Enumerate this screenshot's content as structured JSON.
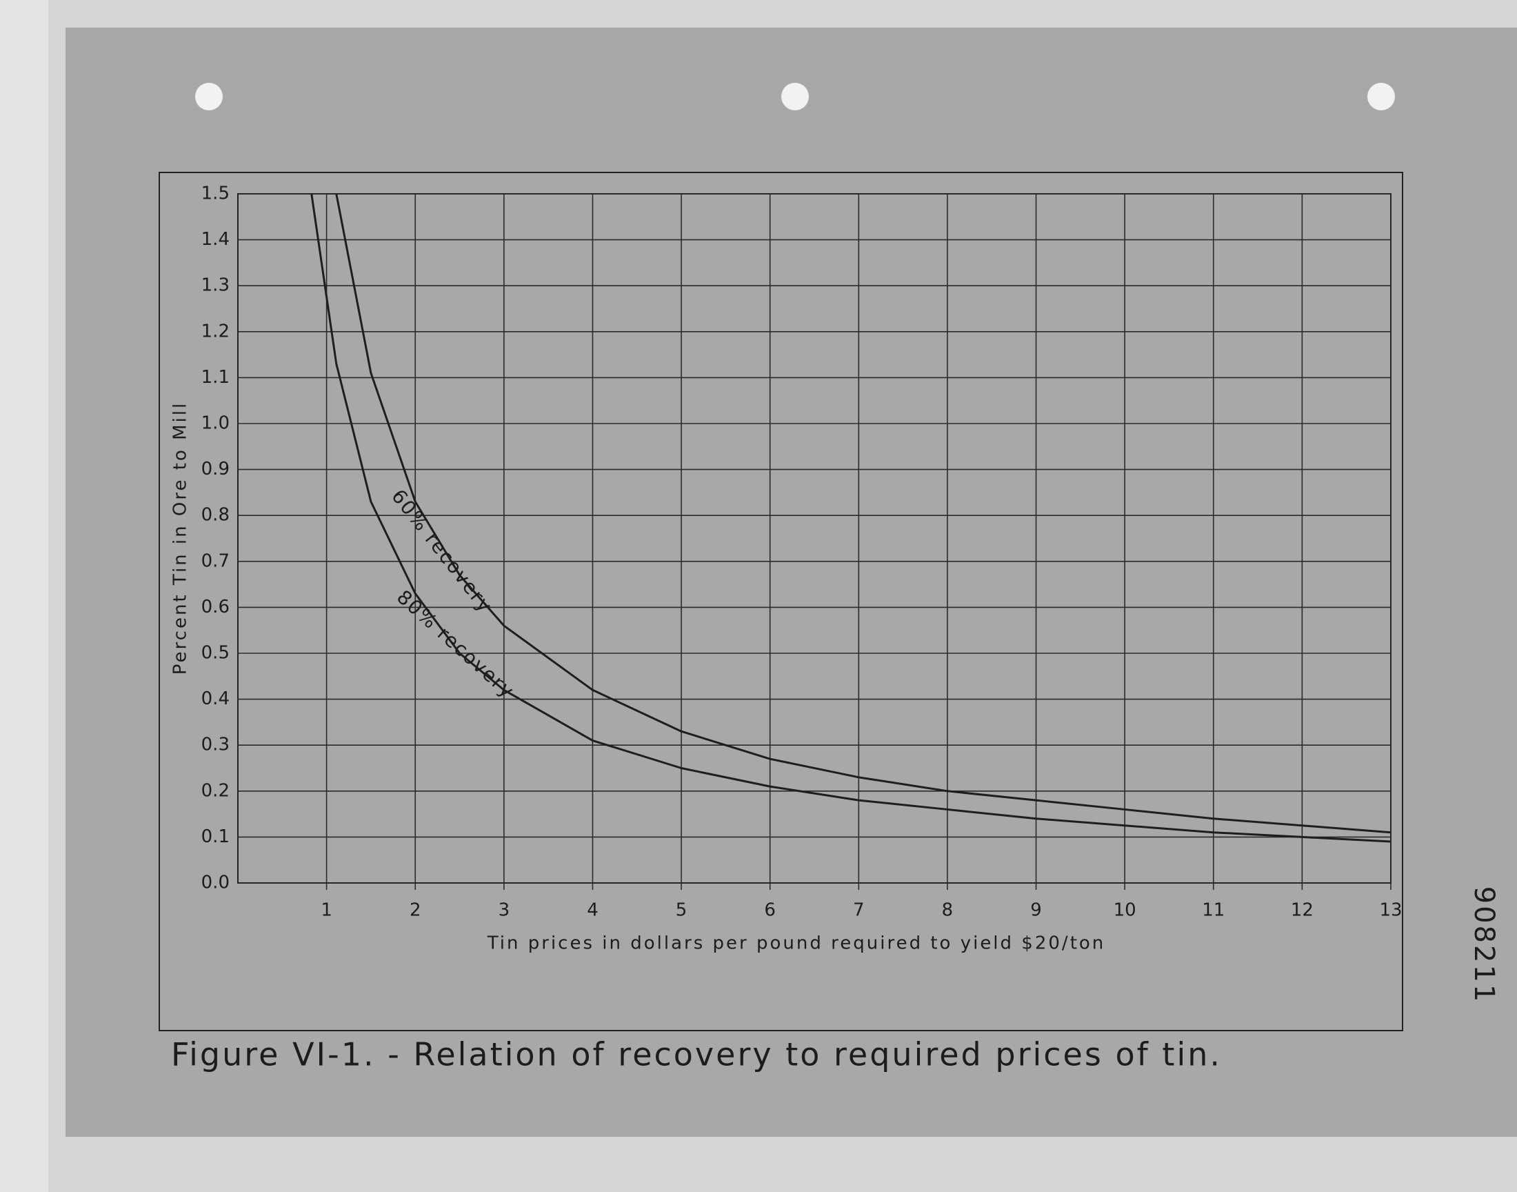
{
  "chart_data": {
    "type": "line",
    "caption": "Figure VI-1. - Relation of recovery to required prices of tin.",
    "side_note": "908211",
    "xlabel": "Tin prices in dollars per pound required to yield $20/ton",
    "ylabel": "Percent Tin in Ore to Mill",
    "annotations": [
      "60% recovery",
      "80% recovery"
    ],
    "x": [
      0.83,
      1.11,
      1.5,
      2,
      2.5,
      3,
      4,
      5,
      6,
      7,
      8,
      9,
      10,
      11,
      12,
      13
    ],
    "series": [
      {
        "name": "60% recovery",
        "color": "#1e1e1e",
        "values": [
          null,
          1.5,
          1.11,
          0.83,
          0.67,
          0.56,
          0.42,
          0.33,
          0.27,
          0.23,
          0.2,
          0.18,
          0.16,
          0.14,
          0.125,
          0.11
        ]
      },
      {
        "name": "80% recovery",
        "color": "#1e1e1e",
        "values": [
          1.5,
          1.13,
          0.83,
          0.63,
          0.5,
          0.42,
          0.31,
          0.25,
          0.21,
          0.18,
          0.16,
          0.14,
          0.125,
          0.11,
          0.1,
          0.09
        ]
      }
    ],
    "xlim": [
      0,
      13
    ],
    "xticks": [
      1,
      2,
      3,
      4,
      5,
      6,
      7,
      8,
      9,
      10,
      11,
      12,
      13
    ],
    "ylim": [
      0,
      1.5
    ],
    "yticks": [
      {
        "value": 0,
        "label": "0.0"
      },
      0.1,
      0.2,
      0.3,
      0.4,
      0.5,
      0.6,
      0.7,
      0.8,
      0.9,
      {
        "value": 1,
        "label": "1.0"
      },
      1.1,
      1.2,
      1.3,
      1.4,
      1.5
    ],
    "grid": true
  }
}
